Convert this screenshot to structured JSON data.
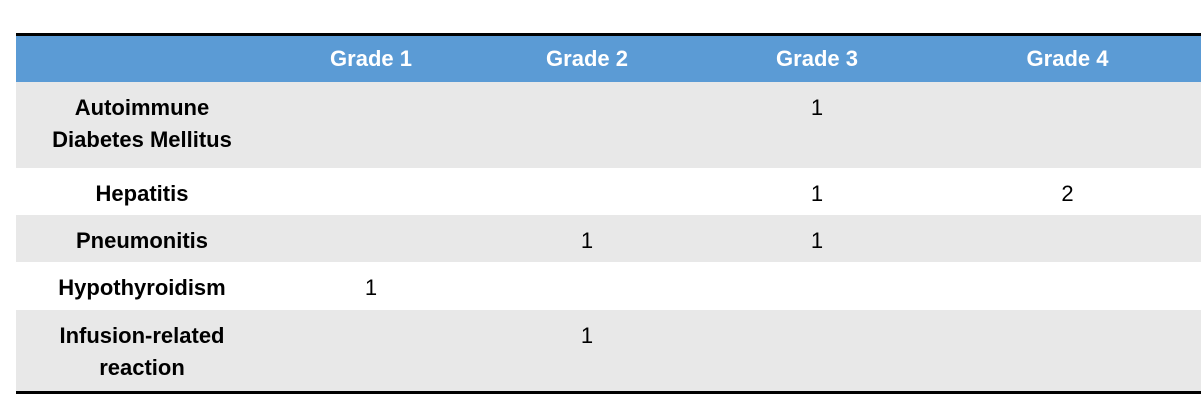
{
  "table": {
    "columns": [
      "Grade 1",
      "Grade 2",
      "Grade 3",
      "Grade 4"
    ],
    "rows": [
      {
        "label": "Autoimmune Diabetes Mellitus",
        "values": [
          null,
          null,
          1,
          null
        ]
      },
      {
        "label": "Hepatitis",
        "values": [
          null,
          null,
          1,
          2
        ]
      },
      {
        "label": "Pneumonitis",
        "values": [
          null,
          1,
          1,
          null
        ]
      },
      {
        "label": "Hypothyroidism",
        "values": [
          1,
          null,
          null,
          null
        ]
      },
      {
        "label": "Infusion-related reaction",
        "values": [
          null,
          1,
          null,
          null
        ]
      }
    ]
  }
}
